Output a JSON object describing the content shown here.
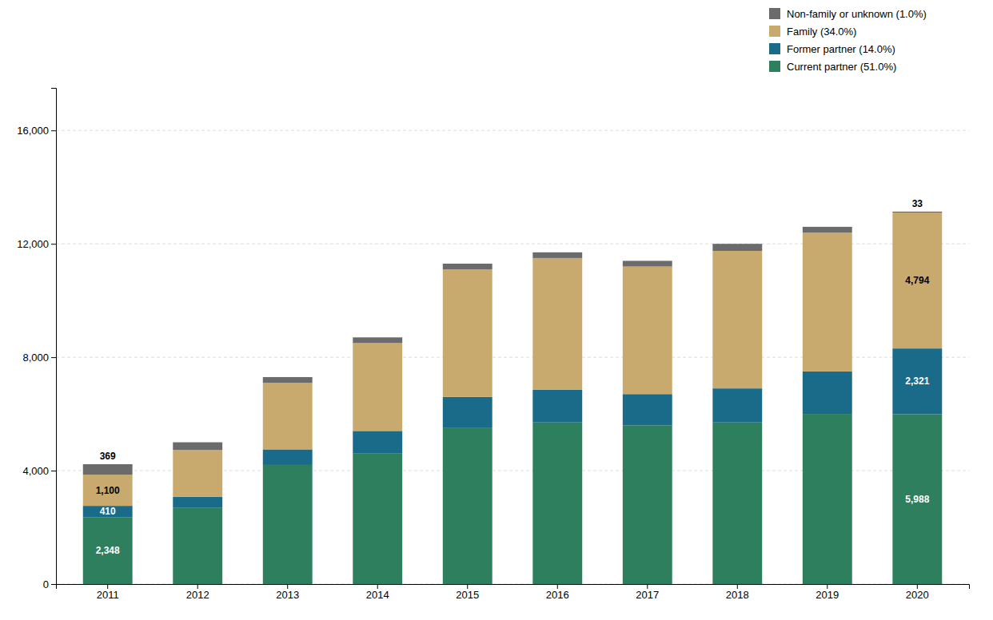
{
  "chart_data": {
    "type": "bar",
    "stacked": true,
    "categories": [
      "2011",
      "2012",
      "2013",
      "2014",
      "2015",
      "2016",
      "2017",
      "2018",
      "2019",
      "2020"
    ],
    "series": [
      {
        "name": "Current partner (51.0%)",
        "color": "#2d7f5e",
        "values": [
          2348,
          2700,
          4200,
          4600,
          5500,
          5700,
          5600,
          5700,
          6000,
          5988
        ],
        "value_labels": [
          "2,348",
          null,
          null,
          null,
          null,
          null,
          null,
          null,
          null,
          "5,988"
        ]
      },
      {
        "name": "Former partner (14.0%)",
        "color": "#1a6b8a",
        "values": [
          410,
          380,
          550,
          800,
          1100,
          1150,
          1100,
          1200,
          1500,
          2321
        ],
        "value_labels": [
          "410",
          null,
          null,
          null,
          null,
          null,
          null,
          null,
          null,
          "2,321"
        ]
      },
      {
        "name": "Family (34.0%)",
        "color": "#c8a96e",
        "values": [
          1100,
          1650,
          2350,
          3100,
          4500,
          4650,
          4500,
          4850,
          4900,
          4794
        ],
        "value_labels": [
          "1,100",
          null,
          null,
          null,
          null,
          null,
          null,
          null,
          null,
          "4,794"
        ]
      },
      {
        "name": "Non-family or unknown (1.0%)",
        "color": "#6b6b6b",
        "values": [
          369,
          270,
          200,
          200,
          200,
          200,
          200,
          250,
          200,
          33
        ],
        "value_labels": [
          "369",
          null,
          null,
          null,
          null,
          null,
          null,
          null,
          null,
          "33"
        ]
      }
    ],
    "ylim": [
      0,
      17500
    ],
    "yticks": [
      0,
      {
        "value": 4000,
        "label": "4,000"
      },
      {
        "value": 8000,
        "label": "8,000"
      },
      {
        "value": 12000,
        "label": "12,000"
      },
      {
        "value": 16000,
        "label": "16,000"
      }
    ],
    "grid": true,
    "legend": "upper right",
    "data_labels": true
  }
}
